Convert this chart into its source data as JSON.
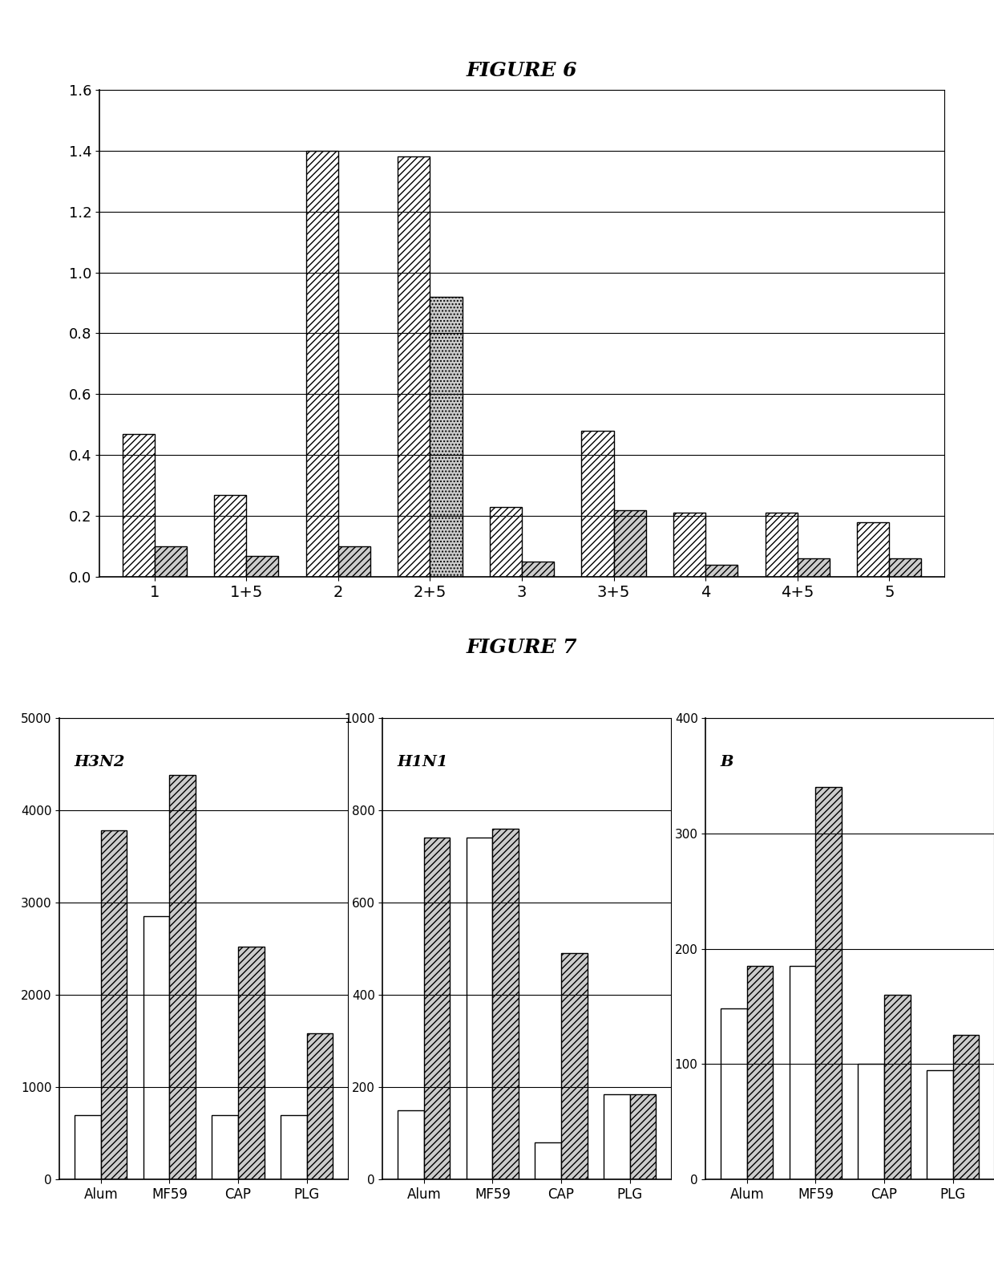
{
  "fig6": {
    "title": "FIGURE 6",
    "groups": [
      "1",
      "1+5",
      "2",
      "2+5",
      "3",
      "3+5",
      "4",
      "4+5",
      "5"
    ],
    "bar1": [
      0.47,
      0.27,
      1.4,
      1.38,
      0.23,
      0.48,
      0.21,
      0.21,
      0.18
    ],
    "bar2": [
      0.1,
      0.07,
      0.1,
      0.92,
      0.05,
      0.22,
      0.04,
      0.06,
      0.06
    ],
    "ylim": [
      0,
      1.6
    ],
    "yticks": [
      0,
      0.2,
      0.4,
      0.6,
      0.8,
      1.0,
      1.2,
      1.4,
      1.6
    ]
  },
  "fig7": {
    "title": "FIGURE 7",
    "subplots": [
      {
        "label": "H3N2",
        "categories": [
          "Alum",
          "MF59",
          "CAP",
          "PLG"
        ],
        "bar1": [
          700,
          2850,
          700,
          700
        ],
        "bar2": [
          3780,
          4380,
          2520,
          1580
        ],
        "ylim": [
          0,
          5000
        ],
        "yticks": [
          0,
          1000,
          2000,
          3000,
          4000,
          5000
        ]
      },
      {
        "label": "H1N1",
        "categories": [
          "Alum",
          "MF59",
          "CAP",
          "PLG"
        ],
        "bar1": [
          150,
          740,
          80,
          185
        ],
        "bar2": [
          740,
          760,
          490,
          185
        ],
        "ylim": [
          0,
          1000
        ],
        "yticks": [
          0,
          200,
          400,
          600,
          800,
          1000
        ]
      },
      {
        "label": "B",
        "categories": [
          "Alum",
          "MF59",
          "CAP",
          "PLG"
        ],
        "bar1": [
          148,
          185,
          100,
          95
        ],
        "bar2": [
          185,
          340,
          160,
          125
        ],
        "ylim": [
          0,
          400
        ],
        "yticks": [
          0,
          100,
          200,
          300,
          400
        ]
      }
    ]
  },
  "hatch_bar1": "////",
  "hatch_bar2_fig6_dotted": "....",
  "hatch_bar2": "////",
  "bar1_facecolor": "white",
  "bar2_facecolor": "#cccccc",
  "bar_edgecolor": "black"
}
